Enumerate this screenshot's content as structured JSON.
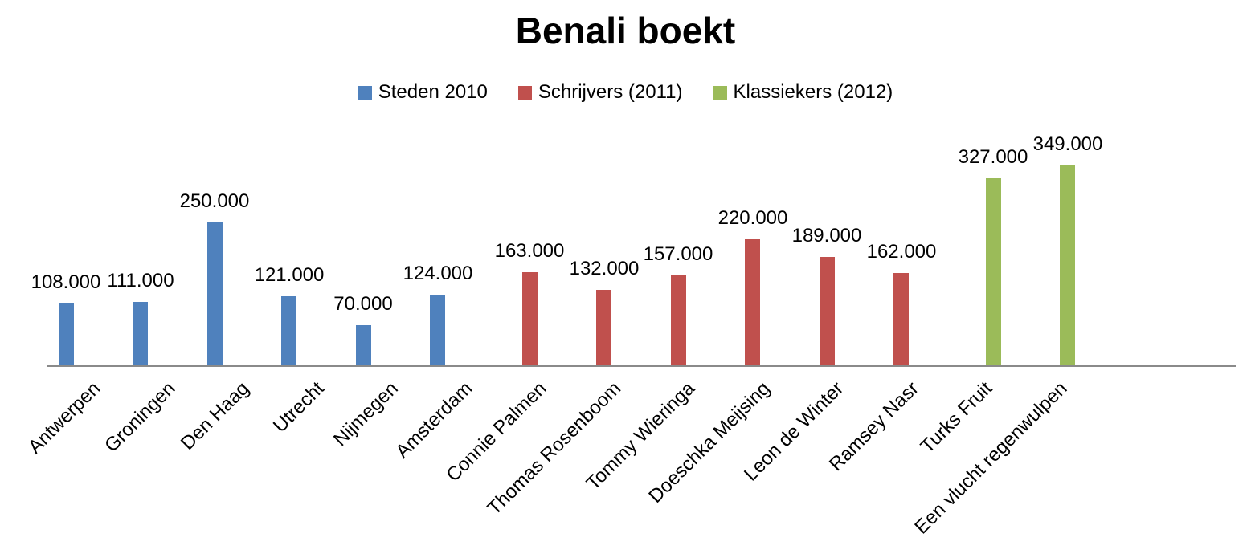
{
  "title": "Benali boekt",
  "chart_data": {
    "type": "bar",
    "title": "Benali boekt",
    "categories": [
      "Antwerpen",
      "Groningen",
      "Den Haag",
      "Utrecht",
      "Nijmegen",
      "Amsterdam",
      "Connie Palmen",
      "Thomas Rosenboom",
      "Tommy Wieringa",
      "Doeschka Meijsing",
      "Leon de Winter",
      "Ramsey Nasr",
      "Turks Fruit",
      "Een vlucht regenwulpen"
    ],
    "series": [
      {
        "name": "Steden 2010",
        "color": "#4F81BD",
        "values": [
          108000,
          111000,
          250000,
          121000,
          70000,
          124000,
          null,
          null,
          null,
          null,
          null,
          null,
          null,
          null
        ],
        "data_labels": [
          "108.000",
          "111.000",
          "250.000",
          "121.000",
          "70.000",
          "124.000",
          "",
          "",
          "",
          "",
          "",
          "",
          "",
          ""
        ]
      },
      {
        "name": "Schrijvers (2011)",
        "color": "#C0504D",
        "values": [
          null,
          null,
          null,
          null,
          null,
          null,
          163000,
          132000,
          157000,
          220000,
          189000,
          162000,
          null,
          null
        ],
        "data_labels": [
          "",
          "",
          "",
          "",
          "",
          "",
          "163.000",
          "132.000",
          "157.000",
          "220.000",
          "189.000",
          "162.000",
          "",
          ""
        ]
      },
      {
        "name": "Klassiekers (2012)",
        "color": "#9BBB59",
        "values": [
          null,
          null,
          null,
          null,
          null,
          null,
          null,
          null,
          null,
          null,
          null,
          null,
          327000,
          349000
        ],
        "data_labels": [
          "",
          "",
          "",
          "",
          "",
          "",
          "",
          "",
          "",
          "",
          "",
          "",
          "327.000",
          "349.000"
        ]
      }
    ],
    "ylim": [
      0,
      380000
    ],
    "grid": false,
    "legend_position": "top",
    "axis_line_color": "#8A8A8A",
    "value_format": "thousands separated by dot",
    "category_label_rotation_deg": -45
  }
}
